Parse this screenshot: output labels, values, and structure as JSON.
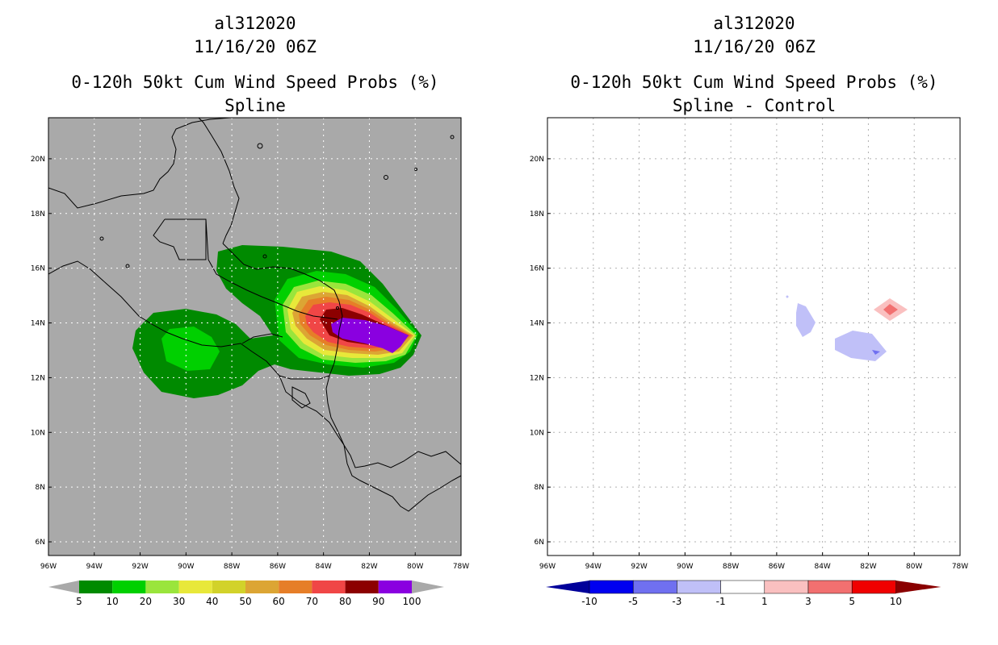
{
  "colors": {
    "land_bg": "#a9a9a9",
    "coast": "#000000",
    "prob_levels": [
      "#008a00",
      "#00d000",
      "#9ae53c",
      "#e8e83a",
      "#d2d22a",
      "#dca534",
      "#e67e28",
      "#f04646",
      "#8c0000",
      "#8a00e0"
    ],
    "diff_levels": [
      "#00009a",
      "#0000f0",
      "#7070f0",
      "#c0c0f8",
      "#ffffff",
      "#fac0c0",
      "#f27070",
      "#f00000",
      "#8a0000"
    ]
  },
  "chart_data": [
    {
      "type": "contour",
      "panel": "left",
      "title_lines": [
        "al312020",
        "11/16/20 06Z",
        "0-120h 50kt Cum Wind Speed Probs (%)",
        "Spline"
      ],
      "x_ticks": [
        "96W",
        "94W",
        "92W",
        "90W",
        "88W",
        "86W",
        "84W",
        "82W",
        "80W",
        "78W"
      ],
      "y_ticks": [
        "6N",
        "8N",
        "10N",
        "12N",
        "14N",
        "16N",
        "18N",
        "20N"
      ],
      "x_range_lon": [
        -96,
        -78
      ],
      "y_range_lat": [
        5.5,
        21.5
      ],
      "grid": true,
      "colorbar_labels": [
        "5",
        "10",
        "20",
        "30",
        "40",
        "50",
        "60",
        "70",
        "80",
        "90",
        "100"
      ],
      "contours": [
        {
          "level": "10-20",
          "desc": "broad swath Gulf of Honduras to east of Nicaragua, and Pacific coast of Guatemala/El Salvador"
        },
        {
          "level": "90-100",
          "peak_lat": 13.9,
          "peak_lon": -81.5
        }
      ]
    },
    {
      "type": "contour",
      "panel": "right",
      "title_lines": [
        "al312020",
        "11/16/20 06Z",
        "0-120h 50kt Cum Wind Speed Probs (%)",
        "Spline - Control"
      ],
      "x_ticks": [
        "96W",
        "94W",
        "92W",
        "90W",
        "88W",
        "86W",
        "84W",
        "82W",
        "80W",
        "78W"
      ],
      "y_ticks": [
        "6N",
        "8N",
        "10N",
        "12N",
        "14N",
        "16N",
        "18N",
        "20N"
      ],
      "x_range_lon": [
        -96,
        -78
      ],
      "y_range_lat": [
        5.5,
        21.5
      ],
      "grid": true,
      "colorbar_labels": [
        "-10",
        "-5",
        "-3",
        "-1",
        "1",
        "3",
        "5",
        "10"
      ],
      "anomalies": [
        {
          "sign": "negative",
          "range": "-3 to -1",
          "lat": 14.1,
          "lon": -84.8
        },
        {
          "sign": "negative",
          "range": "-3 to -1",
          "lat": 13.2,
          "lon": -82.0
        },
        {
          "sign": "positive",
          "range": "1 to 5",
          "lat": 14.5,
          "lon": -81.0
        }
      ]
    }
  ]
}
